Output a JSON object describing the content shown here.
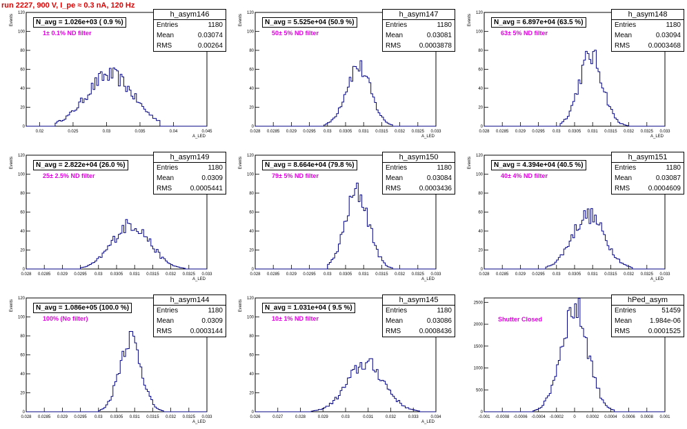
{
  "run_title": "run 2227,   900 V, I_pe ≈ 0.3 nA, 120 Hz",
  "chart_data": [
    {
      "type": "histogram",
      "name": "h_asym146",
      "navg": "N_avg = 1.026e+03 ( 0.9 %)",
      "note": "1± 0.1% ND filter",
      "entries": "1180",
      "mean": "0.03074",
      "rms": "0.00264",
      "xlim": [
        0.018,
        0.045
      ],
      "ylim": [
        0,
        120
      ],
      "xticks": [
        0.02,
        0.025,
        0.03,
        0.035,
        0.04,
        0.045
      ],
      "yticks": [
        0,
        20,
        40,
        60,
        80,
        100,
        120
      ],
      "xlabel": "A_LED",
      "ylabel": "Events",
      "center": 0.0305,
      "width": 0.0035,
      "peak": 55,
      "xmin": 0.0222,
      "xmax": 0.038
    },
    {
      "type": "histogram",
      "name": "h_asym147",
      "navg": "N_avg = 5.525e+04 (50.9 %)",
      "note": "50± 5% ND filter",
      "entries": "1180",
      "mean": "0.03081",
      "rms": "0.0003878",
      "xlim": [
        0.028,
        0.033
      ],
      "ylim": [
        0,
        120
      ],
      "xticks": [
        0.028,
        0.0285,
        0.029,
        0.0295,
        0.03,
        0.0305,
        0.031,
        0.0315,
        0.032,
        0.0325,
        0.033
      ],
      "yticks": [
        0,
        20,
        40,
        60,
        80,
        100,
        120
      ],
      "xlabel": "A_LED",
      "ylabel": "Events",
      "center": 0.03085,
      "width": 0.00034,
      "peak": 64,
      "xmin": 0.0299,
      "xmax": 0.0318
    },
    {
      "type": "histogram",
      "name": "h_asym148",
      "navg": "N_avg = 6.897e+04 (63.5 %)",
      "note": "63± 5% ND filter",
      "entries": "1180",
      "mean": "0.03094",
      "rms": "0.0003468",
      "xlim": [
        0.028,
        0.033
      ],
      "ylim": [
        0,
        120
      ],
      "xticks": [
        0.028,
        0.0285,
        0.029,
        0.0295,
        0.03,
        0.0305,
        0.031,
        0.0315,
        0.032,
        0.0325,
        0.033
      ],
      "yticks": [
        0,
        20,
        40,
        60,
        80,
        100,
        120
      ],
      "xlabel": "A_LED",
      "ylabel": "Events",
      "center": 0.03095,
      "width": 0.00033,
      "peak": 76,
      "xmin": 0.0301,
      "xmax": 0.032
    },
    {
      "type": "histogram",
      "name": "h_asym149",
      "navg": "N_avg = 2.822e+04 (26.0 %)",
      "note": "25± 2.5% ND filter",
      "entries": "1180",
      "mean": "0.0309",
      "rms": "0.0005441",
      "xlim": [
        0.028,
        0.033
      ],
      "ylim": [
        0,
        120
      ],
      "xticks": [
        0.028,
        0.0285,
        0.029,
        0.0295,
        0.03,
        0.0305,
        0.031,
        0.0315,
        0.032,
        0.0325,
        0.033
      ],
      "yticks": [
        0,
        20,
        40,
        60,
        80,
        100,
        120
      ],
      "xlabel": "A_LED",
      "ylabel": "Events",
      "center": 0.0309,
      "width": 0.00052,
      "peak": 48,
      "xmin": 0.0295,
      "xmax": 0.0324
    },
    {
      "type": "histogram",
      "name": "h_asym150",
      "navg": "N_avg = 8.664e+04 (79.8 %)",
      "note": "79± 5% ND filter",
      "entries": "1180",
      "mean": "0.03084",
      "rms": "0.0003436",
      "xlim": [
        0.028,
        0.033
      ],
      "ylim": [
        0,
        120
      ],
      "xticks": [
        0.028,
        0.0285,
        0.029,
        0.0295,
        0.03,
        0.0305,
        0.031,
        0.0315,
        0.032,
        0.0325,
        0.033
      ],
      "yticks": [
        0,
        20,
        40,
        60,
        80,
        100,
        120
      ],
      "xlabel": "A_LED",
      "ylabel": "Events",
      "center": 0.03082,
      "width": 0.00033,
      "peak": 82,
      "xmin": 0.03,
      "xmax": 0.0318
    },
    {
      "type": "histogram",
      "name": "h_asym151",
      "navg": "N_avg = 4.394e+04 (40.5 %)",
      "note": "40± 4% ND filter",
      "entries": "1180",
      "mean": "0.03087",
      "rms": "0.0004609",
      "xlim": [
        0.028,
        0.033
      ],
      "ylim": [
        0,
        120
      ],
      "xticks": [
        0.028,
        0.0285,
        0.029,
        0.0295,
        0.03,
        0.0305,
        0.031,
        0.0315,
        0.032,
        0.0325,
        0.033
      ],
      "yticks": [
        0,
        20,
        40,
        60,
        80,
        100,
        120
      ],
      "xlabel": "A_LED",
      "ylabel": "Events",
      "center": 0.03088,
      "width": 0.00045,
      "peak": 58,
      "xmin": 0.0297,
      "xmax": 0.0321
    },
    {
      "type": "histogram",
      "name": "h_asym144",
      "navg": "N_avg = 1.086e+05 (100.0 %)",
      "note": "100% (No filter)",
      "entries": "1180",
      "mean": "0.0309",
      "rms": "0.0003144",
      "xlim": [
        0.028,
        0.033
      ],
      "ylim": [
        0,
        120
      ],
      "xticks": [
        0.028,
        0.0285,
        0.029,
        0.0295,
        0.03,
        0.0305,
        0.031,
        0.0315,
        0.032,
        0.0325,
        0.033
      ],
      "yticks": [
        0,
        20,
        40,
        60,
        80,
        100,
        120
      ],
      "xlabel": "A_LED",
      "ylabel": "Events",
      "center": 0.03088,
      "width": 0.0003,
      "peak": 80,
      "xmin": 0.03,
      "xmax": 0.0318
    },
    {
      "type": "histogram",
      "name": "h_asym145",
      "navg": "N_avg = 1.031e+04 ( 9.5 %)",
      "note": "10± 1% ND filter",
      "entries": "1180",
      "mean": "0.03086",
      "rms": "0.0008436",
      "xlim": [
        0.026,
        0.034
      ],
      "ylim": [
        0,
        120
      ],
      "xticks": [
        0.026,
        0.027,
        0.028,
        0.029,
        0.03,
        0.031,
        0.032,
        0.033,
        0.034
      ],
      "yticks": [
        0,
        20,
        40,
        60,
        80,
        100,
        120
      ],
      "xlabel": "A_LED",
      "ylabel": "Events",
      "center": 0.0309,
      "width": 0.00082,
      "peak": 52,
      "xmin": 0.0285,
      "xmax": 0.0333
    },
    {
      "type": "histogram",
      "name": "hPed_asym",
      "navg": "",
      "note": "Shutter Closed",
      "entries": "51459",
      "mean": "1.984e-06",
      "rms": "0.0001525",
      "xlim": [
        -0.001,
        0.001
      ],
      "ylim": [
        0,
        2600
      ],
      "xticks": [
        -0.001,
        -0.0008,
        -0.0006,
        -0.0004,
        -0.0002,
        0,
        0.0002,
        0.0004,
        0.0006,
        0.0008,
        0.001
      ],
      "yticks": [
        0,
        500,
        1000,
        1500,
        2000,
        2500
      ],
      "xlabel": "",
      "ylabel": "",
      "center": 0,
      "width": 0.00015,
      "peak": 2430,
      "xmin": -0.00045,
      "xmax": 0.00045
    }
  ]
}
